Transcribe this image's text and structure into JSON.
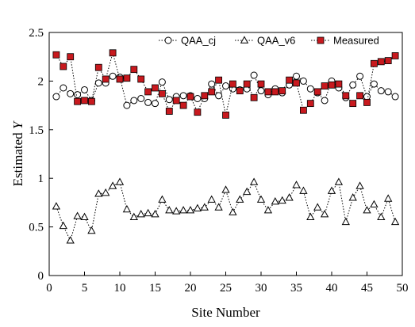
{
  "chart_data": {
    "type": "line",
    "xlabel": "Site Number",
    "ylabel_prefix": "Estimated ",
    "ylabel_var": "Y",
    "xlim": [
      0,
      50
    ],
    "ylim": [
      0,
      2.5
    ],
    "xticks": [
      0,
      5,
      10,
      15,
      20,
      25,
      30,
      35,
      40,
      45,
      50
    ],
    "yticks": [
      0,
      0.5,
      1,
      1.5,
      2,
      2.5
    ],
    "ytick_labels": [
      "0",
      "0.5",
      "1",
      "1.5",
      "2",
      "2.5"
    ],
    "grid": false,
    "legend_position": "top-right",
    "x": [
      1,
      2,
      3,
      4,
      5,
      6,
      7,
      8,
      9,
      10,
      11,
      12,
      13,
      14,
      15,
      16,
      17,
      18,
      19,
      20,
      21,
      22,
      23,
      24,
      25,
      26,
      27,
      28,
      29,
      30,
      31,
      32,
      33,
      34,
      35,
      36,
      37,
      38,
      39,
      40,
      41,
      42,
      43,
      44,
      45,
      46,
      47,
      48,
      49
    ],
    "series": [
      {
        "name": "QAA_cj",
        "marker": "circle",
        "color": "#000000",
        "fill": "#ffffff",
        "values": [
          1.84,
          1.93,
          1.87,
          1.86,
          1.91,
          1.8,
          1.98,
          1.98,
          2.05,
          2.04,
          1.75,
          1.8,
          1.82,
          1.78,
          1.77,
          1.99,
          1.81,
          1.84,
          1.85,
          1.85,
          1.82,
          1.82,
          1.97,
          1.85,
          1.95,
          1.92,
          1.91,
          1.92,
          2.06,
          1.9,
          1.86,
          1.92,
          1.88,
          1.96,
          2.05,
          2.0,
          1.92,
          1.88,
          1.8,
          2.0,
          1.93,
          1.83,
          1.96,
          2.05,
          1.84,
          1.97,
          1.9,
          1.89,
          1.84
        ]
      },
      {
        "name": "QAA_v6",
        "marker": "triangle",
        "color": "#000000",
        "fill": "#ffffff",
        "values": [
          0.71,
          0.51,
          0.36,
          0.61,
          0.6,
          0.46,
          0.84,
          0.85,
          0.92,
          0.96,
          0.68,
          0.6,
          0.63,
          0.64,
          0.63,
          0.78,
          0.67,
          0.66,
          0.67,
          0.67,
          0.69,
          0.7,
          0.78,
          0.7,
          0.88,
          0.65,
          0.78,
          0.86,
          0.96,
          0.78,
          0.67,
          0.76,
          0.77,
          0.8,
          0.93,
          0.87,
          0.6,
          0.7,
          0.63,
          0.87,
          0.96,
          0.55,
          0.8,
          0.92,
          0.67,
          0.73,
          0.6,
          0.79,
          0.55
        ]
      },
      {
        "name": "Measured",
        "marker": "square",
        "color": "#000000",
        "fill": "#c8191e",
        "values": [
          2.27,
          2.15,
          2.25,
          1.79,
          1.8,
          1.79,
          2.14,
          2.02,
          2.29,
          2.02,
          2.03,
          2.12,
          2.02,
          1.89,
          1.93,
          1.87,
          1.69,
          1.8,
          1.75,
          1.84,
          1.68,
          1.85,
          1.89,
          2.01,
          1.65,
          1.97,
          1.9,
          1.97,
          1.83,
          1.97,
          1.89,
          1.89,
          1.9,
          2.01,
          1.98,
          1.7,
          1.77,
          1.89,
          1.95,
          1.96,
          1.97,
          1.85,
          1.77,
          1.85,
          1.78,
          2.18,
          2.2,
          2.21,
          2.26
        ]
      }
    ]
  }
}
